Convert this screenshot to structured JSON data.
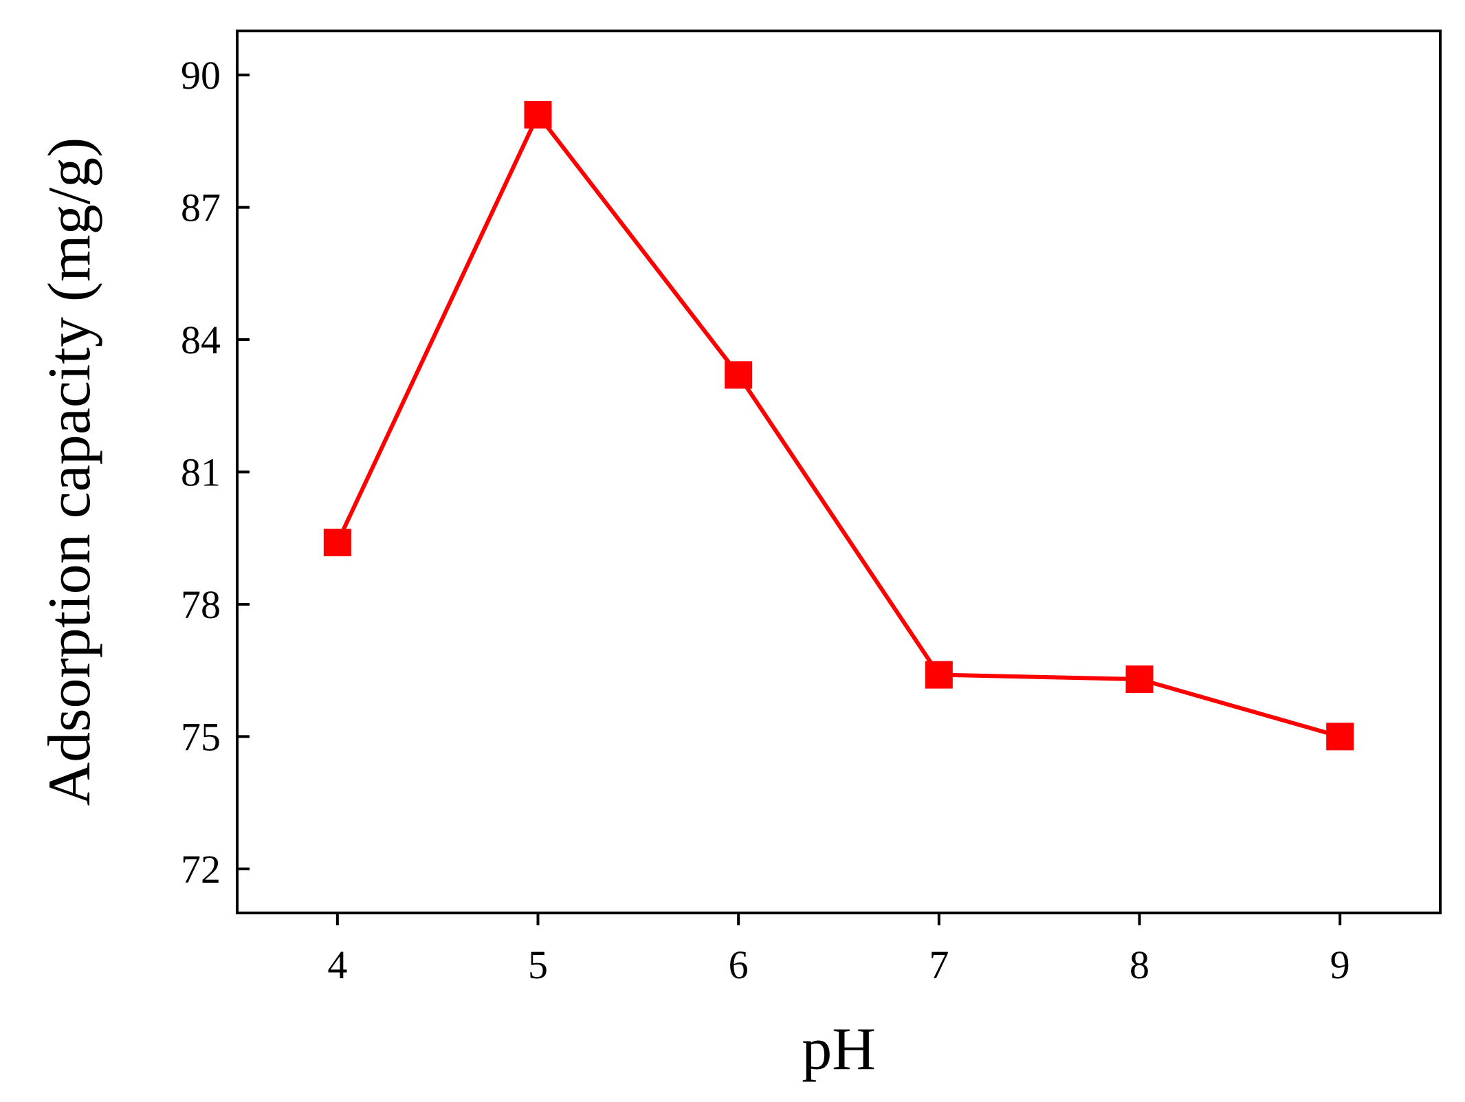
{
  "chart_data": {
    "type": "line",
    "xlabel": "pH",
    "ylabel": "Adsorption capacity (mg/g)",
    "xlim": [
      3.5,
      9.5
    ],
    "ylim": [
      71,
      91
    ],
    "x_ticks": [
      4,
      5,
      6,
      7,
      8,
      9
    ],
    "y_ticks": [
      72,
      75,
      78,
      81,
      84,
      87,
      90
    ],
    "grid": false,
    "legend": "none",
    "series": [
      {
        "color": "#ff0000",
        "marker": "square",
        "x": [
          4,
          5,
          6,
          7,
          8,
          9
        ],
        "y": [
          79.4,
          89.1,
          83.2,
          76.4,
          76.3,
          75.0
        ]
      }
    ]
  }
}
